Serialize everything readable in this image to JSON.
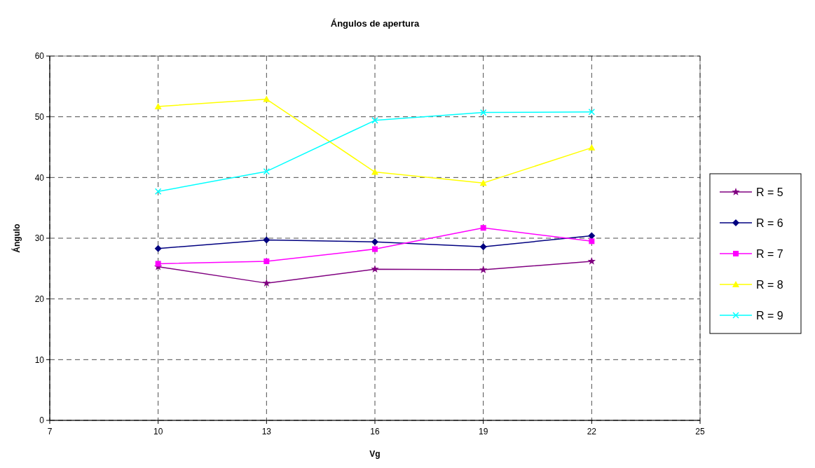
{
  "chart_data": {
    "type": "line",
    "title": "Ángulos de apertura",
    "xlabel": "Vg",
    "ylabel": "Ángulo",
    "x": [
      10,
      13,
      16,
      19,
      22
    ],
    "xlim": [
      7,
      25
    ],
    "xticks": [
      7,
      10,
      13,
      16,
      19,
      22,
      25
    ],
    "ylim": [
      0,
      60
    ],
    "yticks": [
      0,
      10,
      20,
      30,
      40,
      50,
      60
    ],
    "grid": true,
    "legend": "right",
    "line_style": "solid",
    "series": [
      {
        "name": "R = 5",
        "color": "#800080",
        "marker": "star",
        "values": [
          25.3,
          22.6,
          24.9,
          24.8,
          26.2
        ]
      },
      {
        "name": "R = 6",
        "color": "#000080",
        "marker": "diamond",
        "values": [
          28.3,
          29.7,
          29.4,
          28.6,
          30.4
        ]
      },
      {
        "name": "R = 7",
        "color": "#ff00ff",
        "marker": "square",
        "values": [
          25.8,
          26.2,
          28.2,
          31.7,
          29.5
        ]
      },
      {
        "name": "R = 8",
        "color": "#ffff00",
        "marker": "triangle",
        "values": [
          51.7,
          52.9,
          40.9,
          39.1,
          44.9
        ]
      },
      {
        "name": "R = 9",
        "color": "#00ffff",
        "marker": "cross",
        "values": [
          37.7,
          41.0,
          49.4,
          50.7,
          50.8
        ]
      }
    ]
  }
}
